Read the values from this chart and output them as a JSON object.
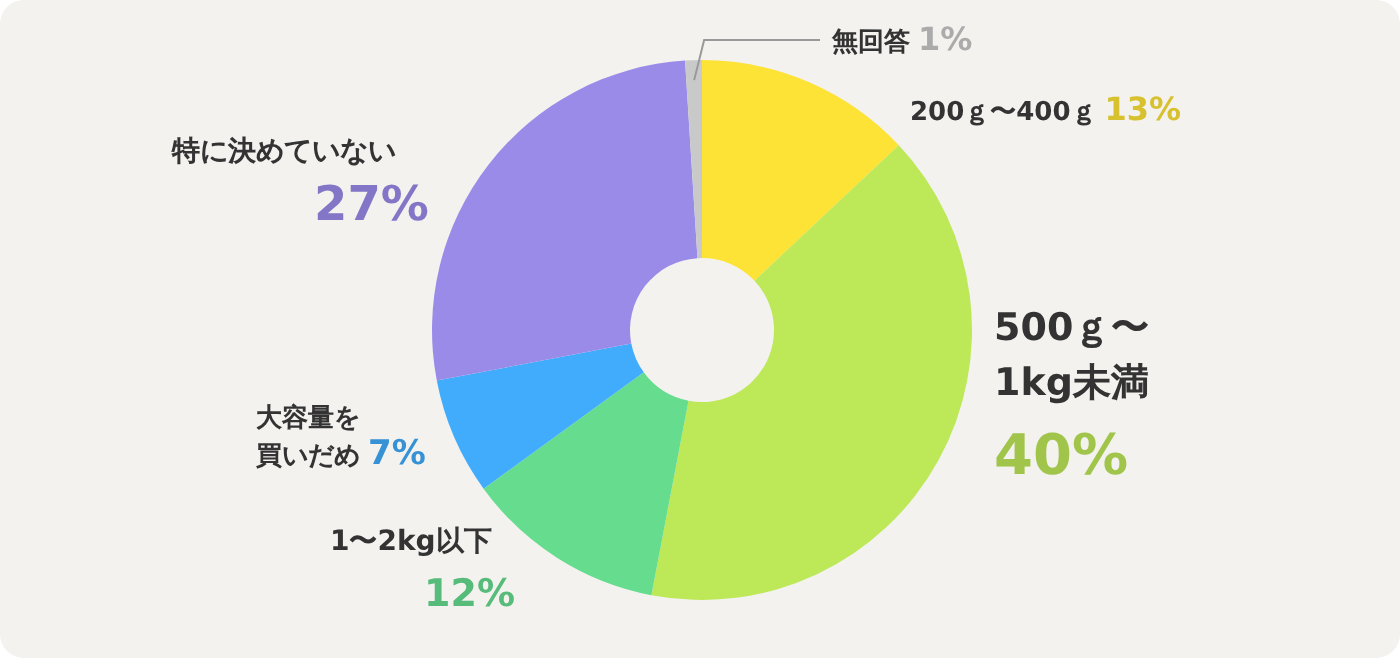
{
  "chart_data": {
    "type": "donut",
    "categories": [
      "200ｇ〜400ｇ",
      "500ｇ〜1kg未満",
      "1〜2kg以下",
      "大容量を買いだめ",
      "特に決めていない",
      "無回答"
    ],
    "values": [
      13,
      40,
      12,
      7,
      27,
      1
    ],
    "colors": [
      "#fde336",
      "#bde858",
      "#66dc8f",
      "#40acfb",
      "#9b8be9",
      "#c9c9c9"
    ],
    "value_labels": [
      "13%",
      "40%",
      "12%",
      "7%",
      "27%",
      "1%"
    ]
  }
}
